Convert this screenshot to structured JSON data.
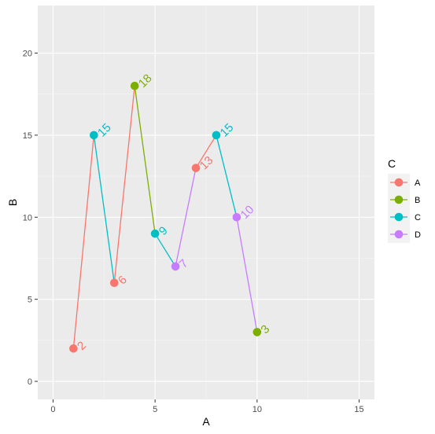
{
  "chart_data": {
    "type": "line",
    "title": "",
    "xlabel": "A",
    "ylabel": "B",
    "xlim": [
      -0.75,
      15.75
    ],
    "ylim": [
      -1.1,
      22.9
    ],
    "x_ticks": [
      0,
      5,
      10,
      15
    ],
    "y_ticks": [
      0,
      5,
      10,
      15,
      20
    ],
    "grid": true,
    "legend": {
      "title": "C",
      "position": "right",
      "entries": [
        "A",
        "B",
        "C",
        "D"
      ]
    },
    "colors": {
      "A": "#F8766D",
      "B": "#7CAE00",
      "C": "#00BFC4",
      "D": "#C77CFF"
    },
    "points": [
      {
        "x": 1,
        "y": 2,
        "group": "A",
        "label": "2"
      },
      {
        "x": 2,
        "y": 15,
        "group": "C",
        "label": "15"
      },
      {
        "x": 3,
        "y": 6,
        "group": "A",
        "label": "6"
      },
      {
        "x": 4,
        "y": 18,
        "group": "B",
        "label": "18"
      },
      {
        "x": 5,
        "y": 9,
        "group": "C",
        "label": "9"
      },
      {
        "x": 6,
        "y": 7,
        "group": "D",
        "label": "7"
      },
      {
        "x": 7,
        "y": 13,
        "group": "A",
        "label": "13"
      },
      {
        "x": 8,
        "y": 15,
        "group": "C",
        "label": "15"
      },
      {
        "x": 9,
        "y": 10,
        "group": "D",
        "label": "10"
      },
      {
        "x": 10,
        "y": 3,
        "group": "B",
        "label": "3"
      }
    ]
  }
}
